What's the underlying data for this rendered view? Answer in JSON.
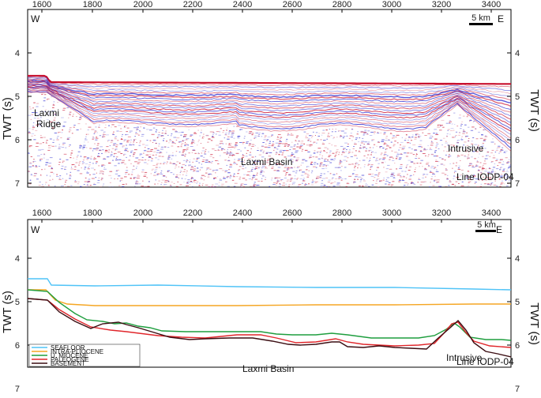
{
  "top_panel": {
    "direction_left": "W",
    "direction_right": "E",
    "scale_label": "5 km",
    "y_label_left": "TWT (s)",
    "y_label_right": "TWT (s)",
    "x_ticks": [
      "1600",
      "1800",
      "2000",
      "2200",
      "2400",
      "2600",
      "2800",
      "3000",
      "3200",
      "3400"
    ],
    "y_ticks": [
      "4",
      "5",
      "6",
      "7"
    ],
    "annotations": {
      "ridge_line1": "Laxmi",
      "ridge_line2": "Ridge",
      "basin": "Laxmi Basin",
      "intrusive": "Intrusive",
      "line_id": "Line IODP-04"
    }
  },
  "bottom_panel": {
    "direction_left": "W",
    "direction_right": "E",
    "scale_label": "5 km",
    "y_label_left": "TWT (s)",
    "y_label_right": "TWT (s)",
    "x_ticks": [
      "1600",
      "1800",
      "2000",
      "2200",
      "2400",
      "2600",
      "2800",
      "3000",
      "3200",
      "3400"
    ],
    "y_ticks": [
      "4",
      "5",
      "6",
      "7"
    ],
    "annotations": {
      "basin": "Laxmi Basin",
      "intrusive": "Intrusive",
      "line_id": "Line IODP-04"
    },
    "legend": [
      {
        "label": "SEAFLOOR",
        "color": "#4fc3f7"
      },
      {
        "label": "INTRA-PLIOCENE",
        "color": "#f5a623"
      },
      {
        "label": "U. MIOCENE",
        "color": "#1e9e3e"
      },
      {
        "label": "PALEOGENE",
        "color": "#e0262b"
      },
      {
        "label": "BASEMENT",
        "color": "#3b0d12"
      }
    ]
  },
  "colors": {
    "seismic_red": "#c8102e",
    "seismic_blue": "#2a2ad0"
  }
}
